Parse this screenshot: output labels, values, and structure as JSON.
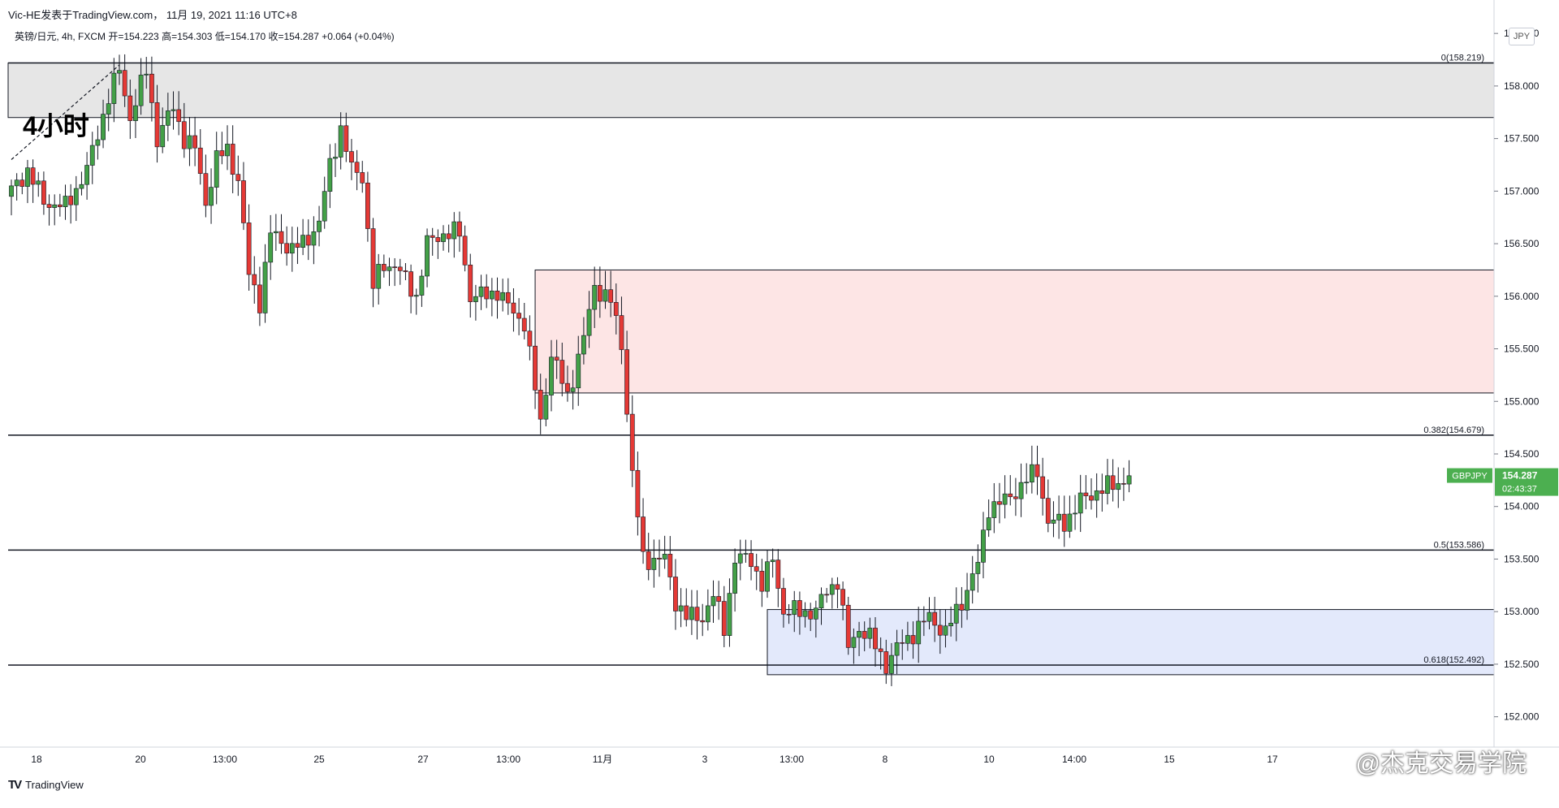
{
  "header": {
    "author_line": "Vic-HE发表于TradingView.com，  11月 19, 2021 11:16 UTC+8",
    "symbol_line": "英镑/日元, 4h, FXCM  开=154.223  高=154.303  低=154.170  收=154.287  +0.064 (+0.04%)"
  },
  "timeframe_label": "4小时",
  "currency": "JPY",
  "brand": {
    "logo": "TV",
    "name": "TradingView"
  },
  "watermark_brand": "@杰克交易学院",
  "last_price": {
    "symbol": "GBPJPY",
    "price": "154.287",
    "countdown": "02:43:37"
  },
  "chart_data": {
    "type": "candlestick",
    "symbol": "GBPJPY",
    "interval": "4h",
    "ylim": [
      151.75,
      158.75
    ],
    "yticks": [
      "158.500",
      "158.000",
      "157.500",
      "157.000",
      "156.500",
      "156.000",
      "155.500",
      "155.000",
      "154.500",
      "154.000",
      "153.500",
      "153.000",
      "152.500",
      "152.000"
    ],
    "xticks": [
      "18",
      "20",
      "13:00",
      "25",
      "27",
      "13:00",
      "11月",
      "3",
      "13:00",
      "8",
      "10",
      "14:00",
      "15",
      "17"
    ],
    "candle_count": 208,
    "pivots": [
      [
        0,
        157.0
      ],
      [
        3,
        157.2
      ],
      [
        6,
        156.9
      ],
      [
        10,
        156.85
      ],
      [
        14,
        157.2
      ],
      [
        18,
        157.9
      ],
      [
        20,
        158.15
      ],
      [
        22,
        157.7
      ],
      [
        25,
        158.15
      ],
      [
        27,
        157.5
      ],
      [
        30,
        157.8
      ],
      [
        32,
        157.5
      ],
      [
        34,
        157.4
      ],
      [
        36,
        156.9
      ],
      [
        38,
        157.3
      ],
      [
        40,
        157.4
      ],
      [
        42,
        157.1
      ],
      [
        44,
        156.2
      ],
      [
        46,
        155.95
      ],
      [
        48,
        156.6
      ],
      [
        52,
        156.45
      ],
      [
        54,
        156.5
      ],
      [
        57,
        156.7
      ],
      [
        59,
        157.25
      ],
      [
        61,
        157.6
      ],
      [
        63,
        157.2
      ],
      [
        65,
        157.15
      ],
      [
        67,
        156.1
      ],
      [
        69,
        156.3
      ],
      [
        71,
        156.3
      ],
      [
        75,
        156.0
      ],
      [
        77,
        156.5
      ],
      [
        80,
        156.6
      ],
      [
        83,
        156.6
      ],
      [
        85,
        156.0
      ],
      [
        87,
        156.0
      ],
      [
        90,
        156.05
      ],
      [
        92,
        155.9
      ],
      [
        95,
        155.75
      ],
      [
        98,
        154.8
      ],
      [
        100,
        155.45
      ],
      [
        103,
        155.05
      ],
      [
        106,
        155.6
      ],
      [
        108,
        156.1
      ],
      [
        111,
        155.95
      ],
      [
        113,
        155.55
      ],
      [
        115,
        154.3
      ],
      [
        117,
        153.5
      ],
      [
        121,
        153.5
      ],
      [
        123,
        153.1
      ],
      [
        125,
        152.95
      ],
      [
        128,
        152.95
      ],
      [
        130,
        153.15
      ],
      [
        132,
        152.85
      ],
      [
        134,
        153.5
      ],
      [
        137,
        153.5
      ],
      [
        139,
        153.25
      ],
      [
        141,
        153.5
      ],
      [
        143,
        153.0
      ],
      [
        146,
        153.0
      ],
      [
        149,
        153.0
      ],
      [
        151,
        153.2
      ],
      [
        153,
        153.3
      ],
      [
        155,
        152.65
      ],
      [
        157,
        152.85
      ],
      [
        159,
        152.75
      ],
      [
        162,
        152.5
      ],
      [
        164,
        152.65
      ],
      [
        167,
        152.8
      ],
      [
        170,
        152.95
      ],
      [
        173,
        152.8
      ],
      [
        176,
        153.1
      ],
      [
        179,
        153.45
      ],
      [
        181,
        154.0
      ],
      [
        184,
        154.05
      ],
      [
        186,
        154.15
      ],
      [
        190,
        154.35
      ],
      [
        192,
        153.85
      ],
      [
        195,
        153.85
      ],
      [
        198,
        154.05
      ],
      [
        201,
        154.15
      ],
      [
        204,
        154.2
      ],
      [
        207,
        154.287
      ]
    ],
    "levels": [
      {
        "label": "0(158.219)",
        "price": 158.219
      },
      {
        "label": "0.382(154.679)",
        "price": 154.679
      },
      {
        "label": "0.5(153.586)",
        "price": 153.586
      },
      {
        "label": "0.618(152.492)",
        "price": 152.492
      }
    ],
    "zones": [
      {
        "name": "supply-zone-top",
        "from_index": 0,
        "price_top": 158.219,
        "price_bottom": 157.7,
        "color": "#e6e6e6"
      },
      {
        "name": "supply-zone-middle",
        "from_index": 97,
        "price_top": 156.25,
        "price_bottom": 155.08,
        "color": "#fde5e5"
      },
      {
        "name": "demand-zone",
        "from_index": 140,
        "price_top": 153.02,
        "price_bottom": 152.4,
        "color": "#e3e9fb"
      }
    ],
    "trendline": {
      "from": [
        0,
        157.3
      ],
      "to": [
        20,
        158.2
      ]
    },
    "colors": {
      "up": "#43a047",
      "down": "#e53935",
      "wick": "#131722",
      "grid": "#ffffff",
      "last_price": "#4caf50"
    }
  }
}
